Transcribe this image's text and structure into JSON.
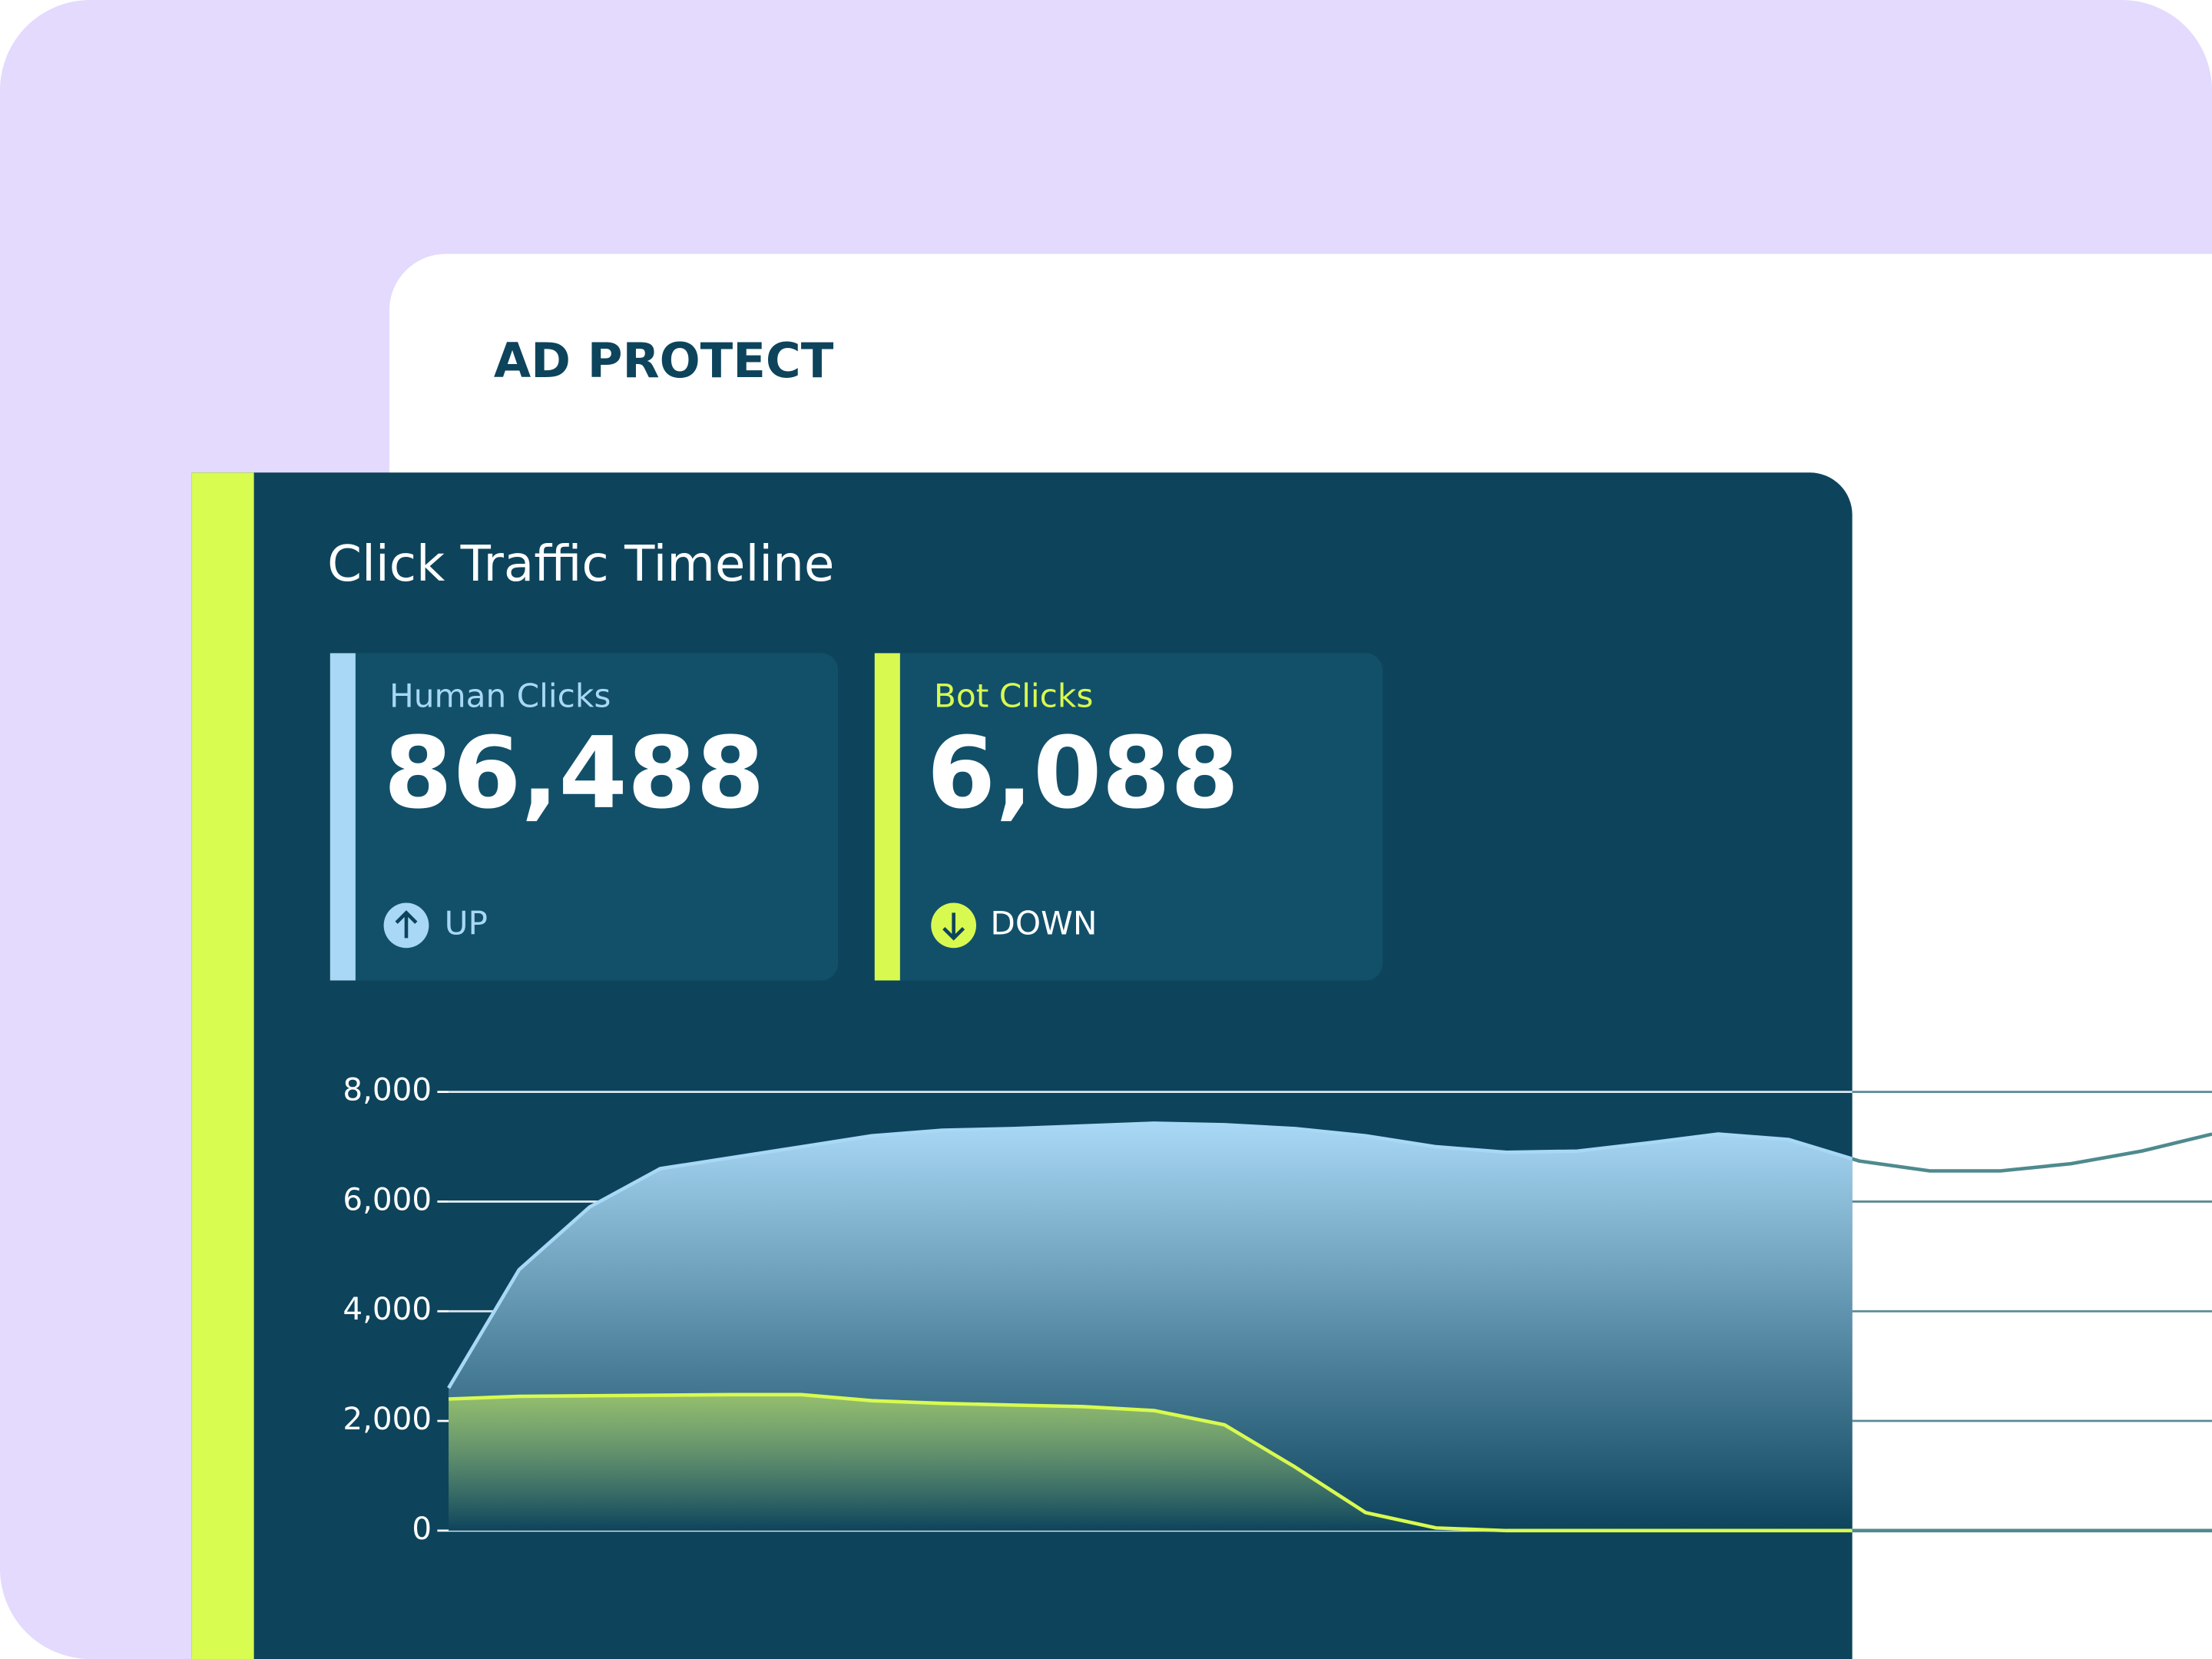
{
  "header": {
    "title": "AD PROTECT"
  },
  "cards": [
    {
      "value": "86,488",
      "trend": "UP"
    },
    {
      "value": "6,088",
      "trend": "DOWN"
    }
  ],
  "chart_data": {
    "type": "area",
    "title": "Click Traffic Timeline",
    "ylim": [
      0,
      8000
    ],
    "yticks": [
      0,
      {
        "value": 2000,
        "label": "2,000"
      },
      {
        "value": 4000,
        "label": "4,000"
      },
      {
        "value": 6000,
        "label": "6,000"
      },
      {
        "value": 8000,
        "label": "8,000"
      }
    ],
    "grid": true,
    "series": [
      {
        "name": "Human Clicks",
        "color": "#a8d8f5",
        "values": [
          2600,
          4760,
          5900,
          6600,
          6800,
          7000,
          7200,
          7300,
          7330,
          7380,
          7430,
          7400,
          7330,
          7200,
          7000,
          6900,
          6920,
          7070,
          7230,
          7130,
          6740,
          6560,
          6560,
          6690,
          6920,
          7230
        ]
      },
      {
        "name": "Bot Clicks",
        "color": "#d8fa50",
        "values": [
          2400,
          2450,
          2460,
          2470,
          2480,
          2480,
          2370,
          2320,
          2290,
          2260,
          2190,
          1930,
          1160,
          330,
          50,
          0,
          0,
          0,
          0,
          0,
          0,
          0,
          0,
          0,
          0,
          0
        ]
      }
    ]
  }
}
